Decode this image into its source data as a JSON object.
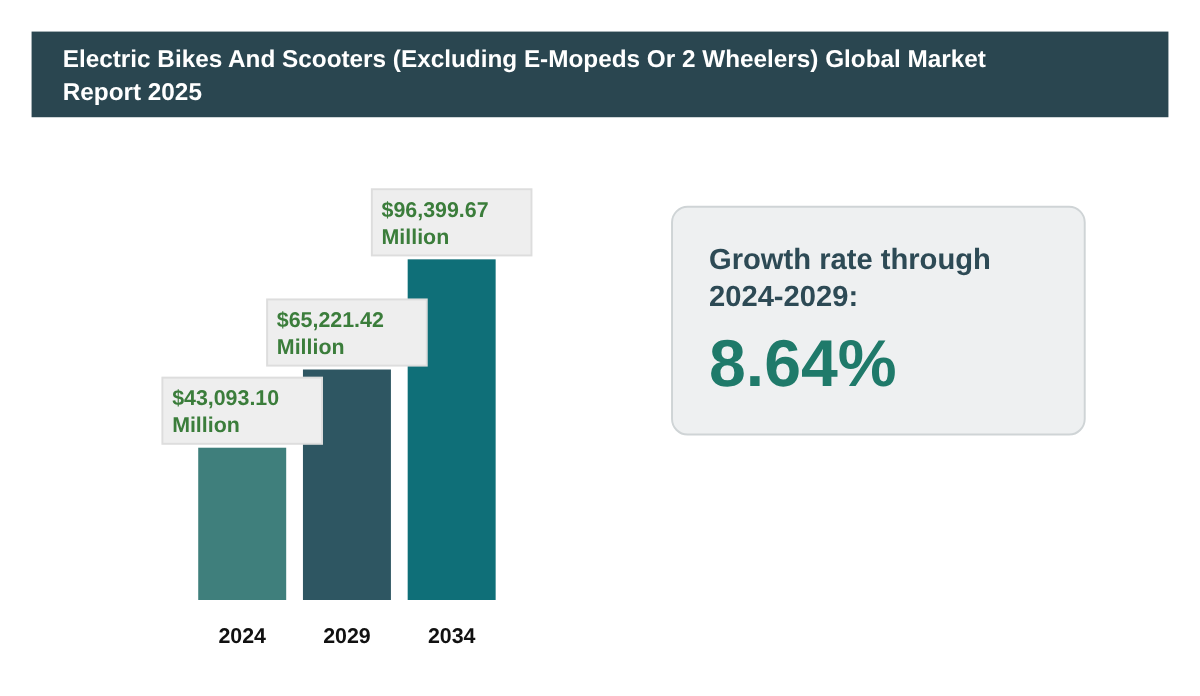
{
  "chart_data": {
    "type": "bar",
    "title": "Electric Bikes And Scooters (Excluding E-Mopeds Or 2 Wheelers) Global Market Report 2025",
    "categories": [
      "2024",
      "2029",
      "2034"
    ],
    "values": [
      43093.1,
      65221.42,
      96399.67
    ],
    "colors": [
      "#3f7f7c",
      "#2e5662",
      "#0f6f78"
    ],
    "value_labels": [
      "$43,093.10 Million",
      "$65,221.42 Million",
      "$96,399.67 Million"
    ],
    "annotations": [
      "Growth rate through 2024-2029:",
      "8.64%"
    ]
  }
}
